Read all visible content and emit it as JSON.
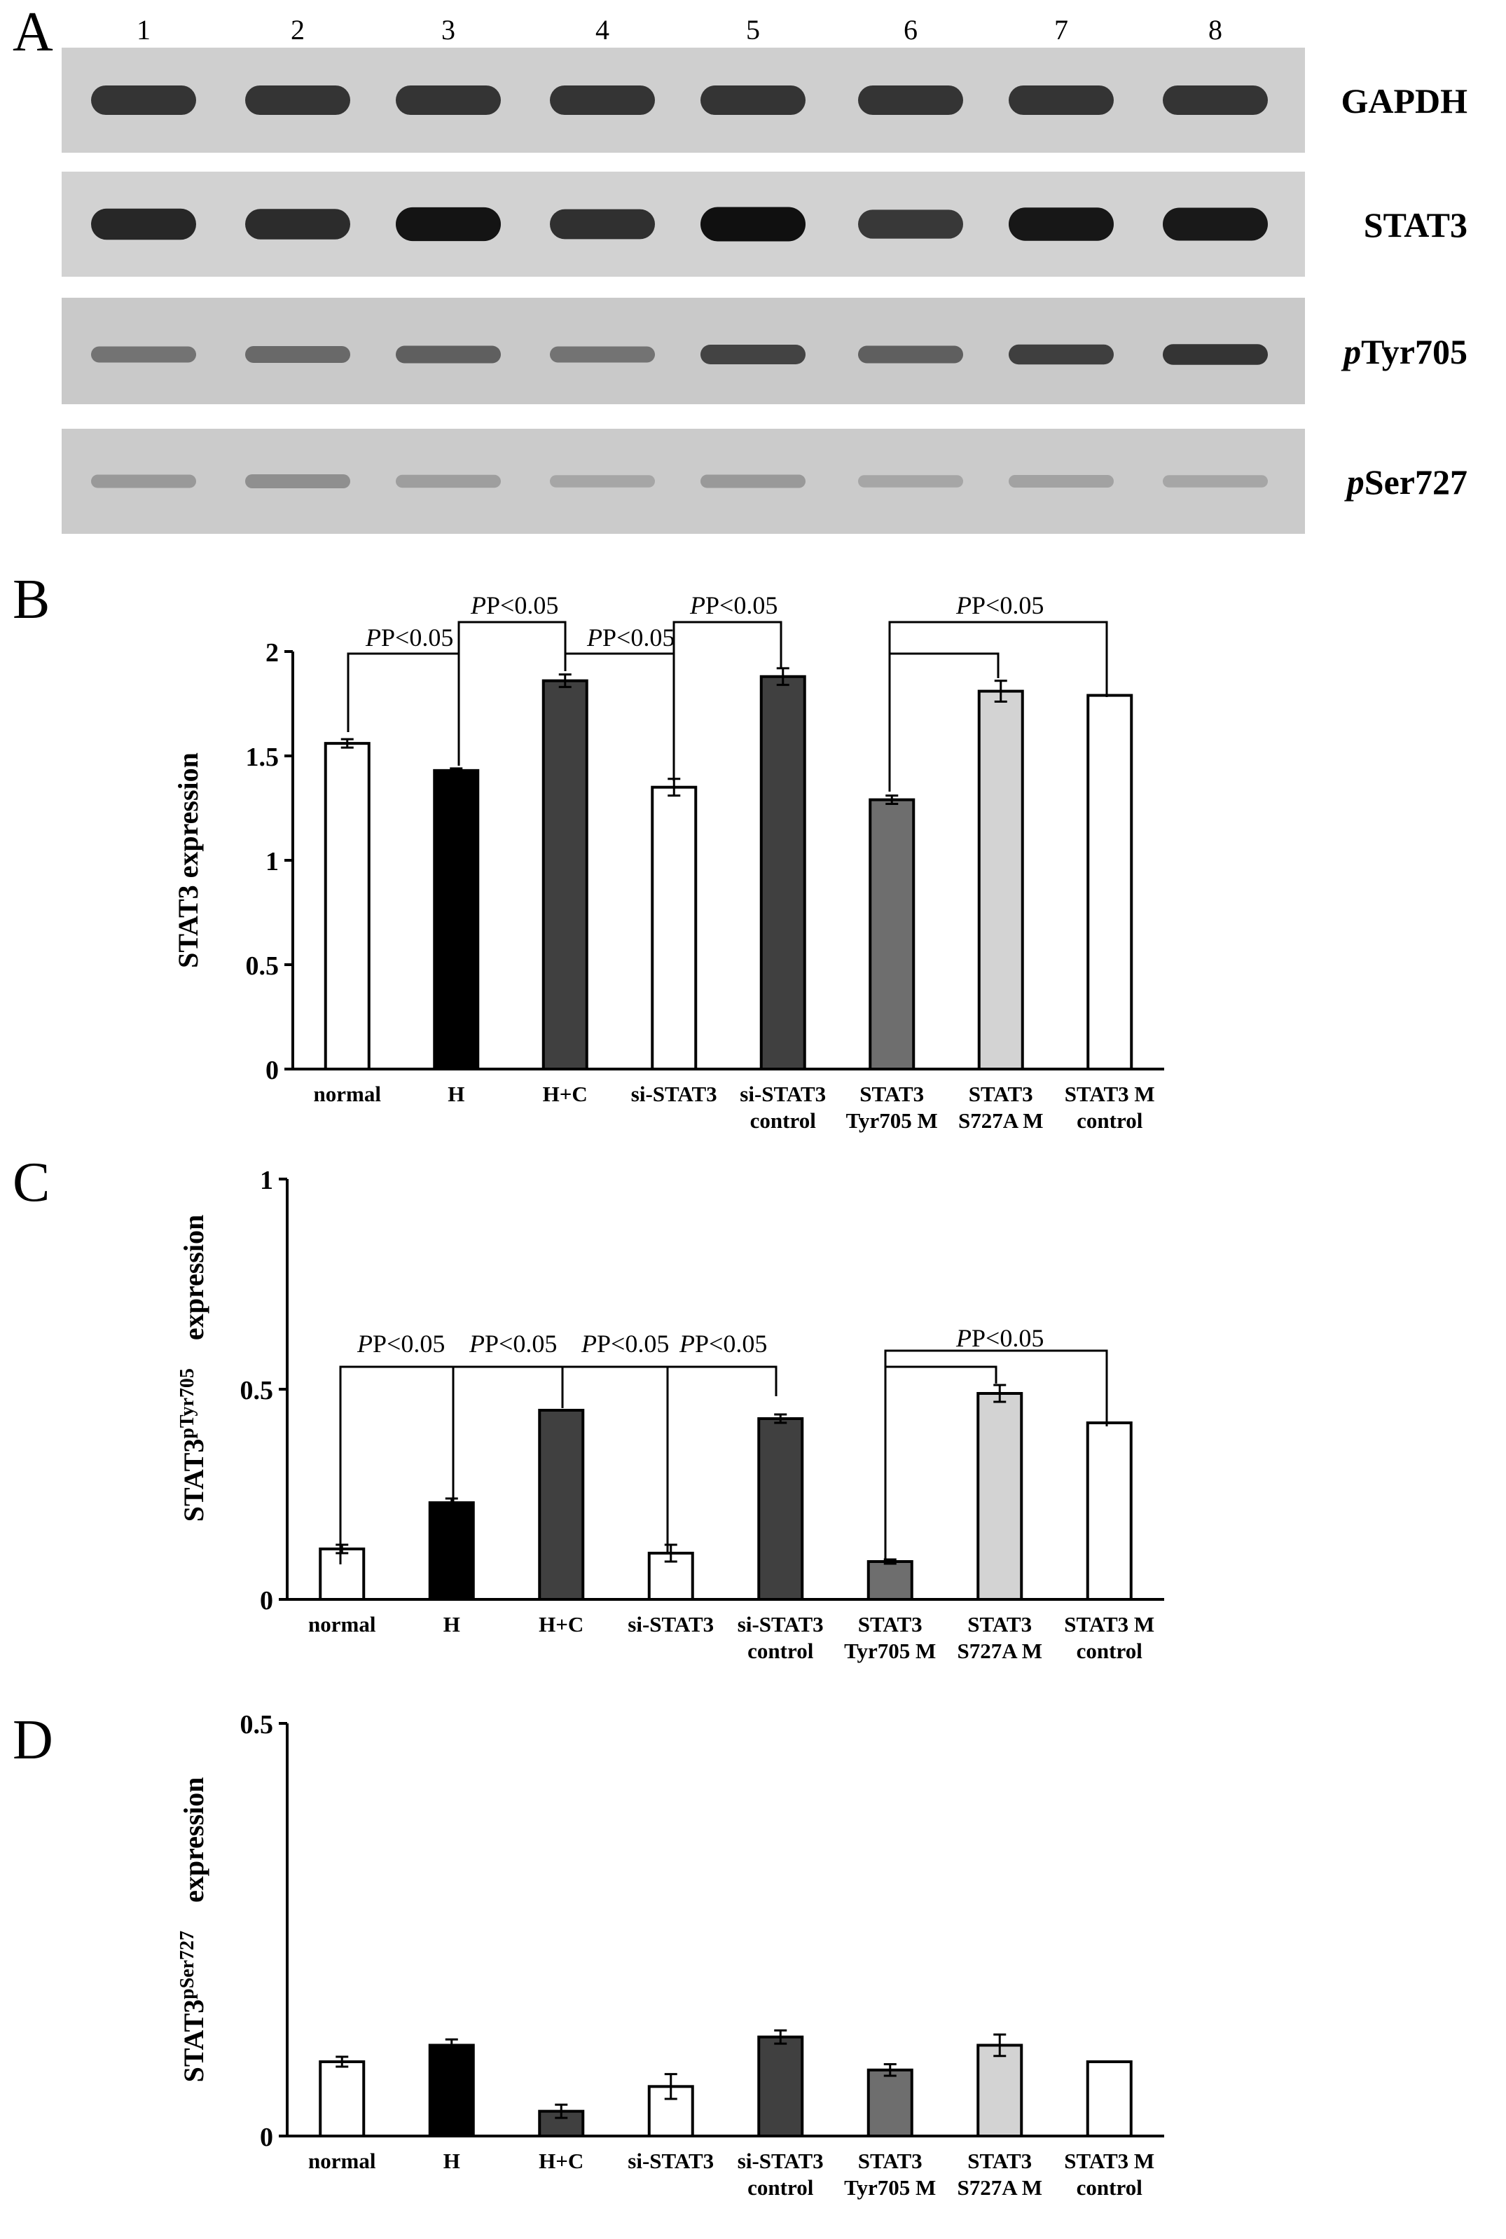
{
  "panel_letters": [
    "A",
    "B",
    "C",
    "D"
  ],
  "blot": {
    "lanes": [
      "1",
      "2",
      "3",
      "4",
      "5",
      "6",
      "7",
      "8"
    ],
    "rows": [
      {
        "label": "GAPDH",
        "italic_prefix": "",
        "rest": "GAPDH",
        "background": "#cfcfcf"
      },
      {
        "label": "STAT3",
        "italic_prefix": "",
        "rest": "STAT3",
        "background": "#d2d2d2"
      },
      {
        "label": "pTyr705",
        "italic_prefix": "p",
        "rest": "Tyr705",
        "background": "#c9c9c9"
      },
      {
        "label": "pSer727",
        "italic_prefix": "p",
        "rest": "Ser727",
        "background": "#cbcbcb"
      }
    ],
    "band_intensity": [
      [
        0.78,
        0.78,
        0.78,
        0.78,
        0.78,
        0.78,
        0.78,
        0.78
      ],
      [
        0.85,
        0.82,
        0.95,
        0.8,
        0.97,
        0.76,
        0.93,
        0.92
      ],
      [
        0.45,
        0.5,
        0.55,
        0.45,
        0.7,
        0.55,
        0.72,
        0.78
      ],
      [
        0.25,
        0.3,
        0.22,
        0.18,
        0.25,
        0.18,
        0.2,
        0.18
      ]
    ]
  },
  "chart_data": [
    {
      "panel": "B",
      "type": "bar",
      "ylabel": "STAT3  expression",
      "ylim": [
        0,
        2
      ],
      "yticks": [
        "0",
        "0.5",
        "1",
        "1.5",
        "2"
      ],
      "categories": [
        [
          "normal"
        ],
        [
          "H"
        ],
        [
          "H+C"
        ],
        [
          "si-STAT3"
        ],
        [
          "si-STAT3",
          "control"
        ],
        [
          "STAT3",
          "Tyr705 M"
        ],
        [
          "STAT3",
          "S727A M"
        ],
        [
          "STAT3 M",
          "control"
        ]
      ],
      "values": [
        1.56,
        1.43,
        1.86,
        1.35,
        1.88,
        1.29,
        1.81,
        1.79
      ],
      "errors": [
        0.02,
        0.01,
        0.03,
        0.04,
        0.04,
        0.02,
        0.05,
        0.0
      ],
      "colors": [
        "#ffffff",
        "#000000",
        "#404040",
        "#ffffff",
        "#404040",
        "#6e6e6e",
        "#d3d3d3",
        "#ffffff"
      ],
      "annotations": [
        "P<0.05",
        "P<0.05",
        "P<0.05",
        "P<0.05",
        "P<0.05"
      ]
    },
    {
      "panel": "C",
      "type": "bar",
      "ylabel": "STAT3pTyr705 expression",
      "ylabel_main": "STAT3",
      "ylabel_sup": "pTyr705",
      "ylabel_tail": "expression",
      "ylim": [
        0,
        1
      ],
      "yticks": [
        "0",
        "0.5",
        "1"
      ],
      "categories": [
        [
          "normal"
        ],
        [
          "H"
        ],
        [
          "H+C"
        ],
        [
          "si-STAT3"
        ],
        [
          "si-STAT3",
          "control"
        ],
        [
          "STAT3",
          "Tyr705 M"
        ],
        [
          "STAT3",
          "S727A M"
        ],
        [
          "STAT3 M",
          "control"
        ]
      ],
      "values": [
        0.12,
        0.23,
        0.45,
        0.11,
        0.43,
        0.09,
        0.49,
        0.42
      ],
      "errors": [
        0.01,
        0.01,
        0.0,
        0.02,
        0.01,
        0.005,
        0.02,
        0.0
      ],
      "colors": [
        "#ffffff",
        "#000000",
        "#404040",
        "#ffffff",
        "#404040",
        "#6e6e6e",
        "#d3d3d3",
        "#ffffff"
      ],
      "annotations": [
        "P<0.05",
        "P<0.05",
        "P<0.05",
        "P<0.05",
        "P<0.05"
      ]
    },
    {
      "panel": "D",
      "type": "bar",
      "ylabel": "STAT3pSer727 expression",
      "ylabel_main": "STAT3",
      "ylabel_sup": "pSer727",
      "ylabel_tail": "expression",
      "ylim": [
        0,
        0.5
      ],
      "yticks": [
        "0",
        "0.5"
      ],
      "categories": [
        [
          "normal"
        ],
        [
          "H"
        ],
        [
          "H+C"
        ],
        [
          "si-STAT3"
        ],
        [
          "si-STAT3",
          "control"
        ],
        [
          "STAT3",
          "Tyr705 M"
        ],
        [
          "STAT3",
          "S727A M"
        ],
        [
          "STAT3 M",
          "control"
        ]
      ],
      "values": [
        0.09,
        0.11,
        0.03,
        0.06,
        0.12,
        0.08,
        0.11,
        0.09
      ],
      "errors": [
        0.006,
        0.007,
        0.008,
        0.015,
        0.008,
        0.007,
        0.013,
        0.0
      ],
      "colors": [
        "#ffffff",
        "#000000",
        "#404040",
        "#ffffff",
        "#404040",
        "#6e6e6e",
        "#d3d3d3",
        "#ffffff"
      ],
      "annotations": []
    }
  ]
}
